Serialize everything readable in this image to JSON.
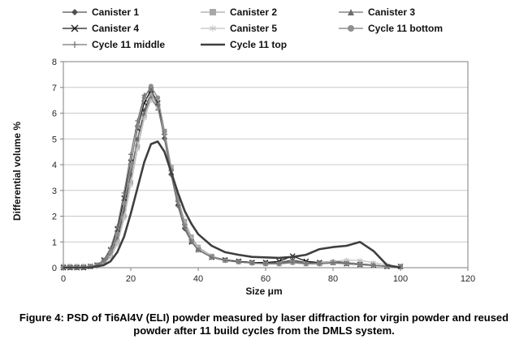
{
  "caption": "Figure 4: PSD of Ti6Al4V (ELI) powder measured by laser diffraction for virgin powder and reused powder after 11 build cycles from the DMLS system.",
  "chart_data": {
    "type": "line",
    "title": "",
    "xlabel": "Size μm",
    "ylabel": "Differential volume %",
    "xlim": [
      0,
      120
    ],
    "ylim": [
      0,
      8
    ],
    "x_ticks": [
      0,
      20,
      40,
      60,
      80,
      100,
      120
    ],
    "y_ticks": [
      0,
      1,
      2,
      3,
      4,
      5,
      6,
      7,
      8
    ],
    "grid": "horizontal",
    "legend_position": "top",
    "x": [
      0,
      2,
      4,
      6,
      8,
      10,
      12,
      14,
      16,
      18,
      20,
      22,
      24,
      26,
      28,
      30,
      32,
      34,
      36,
      38,
      40,
      44,
      48,
      52,
      56,
      60,
      64,
      68,
      72,
      76,
      80,
      84,
      88,
      92,
      96,
      100
    ],
    "series": [
      {
        "name": "Canister 1",
        "marker": "diamond",
        "color": "#4f4f4f",
        "width": 1.3,
        "values": [
          0,
          0,
          0,
          0,
          0.05,
          0.05,
          0.15,
          0.45,
          1.1,
          2.2,
          3.6,
          5.0,
          6.1,
          6.8,
          6.3,
          5.0,
          3.6,
          2.4,
          1.5,
          1.0,
          0.7,
          0.4,
          0.3,
          0.25,
          0.2,
          0.2,
          0.2,
          0.3,
          0.2,
          0.2,
          0.25,
          0.2,
          0.15,
          0.1,
          0.05,
          0.05
        ]
      },
      {
        "name": "Canister 2",
        "marker": "square",
        "color": "#a8a8a8",
        "width": 1.3,
        "values": [
          0.05,
          0.05,
          0.05,
          0.05,
          0.05,
          0.1,
          0.2,
          0.5,
          1.0,
          2.0,
          3.3,
          4.7,
          5.9,
          6.7,
          6.4,
          5.3,
          3.9,
          2.7,
          1.8,
          1.2,
          0.8,
          0.45,
          0.3,
          0.25,
          0.2,
          0.15,
          0.15,
          0.2,
          0.15,
          0.15,
          0.2,
          0.2,
          0.15,
          0.1,
          0.05,
          0.05
        ]
      },
      {
        "name": "Canister 3",
        "marker": "triangle",
        "color": "#6e6e6e",
        "width": 1.3,
        "values": [
          0,
          0,
          0,
          0,
          0.05,
          0.1,
          0.2,
          0.55,
          1.2,
          2.3,
          3.7,
          5.0,
          6.0,
          6.6,
          6.2,
          5.1,
          3.7,
          2.5,
          1.6,
          1.05,
          0.72,
          0.42,
          0.3,
          0.24,
          0.2,
          0.18,
          0.18,
          0.25,
          0.18,
          0.18,
          0.22,
          0.18,
          0.14,
          0.1,
          0.05,
          0.04
        ]
      },
      {
        "name": "Canister 4",
        "marker": "x",
        "color": "#1a1a1a",
        "width": 1.3,
        "values": [
          0,
          0,
          0,
          0,
          0.05,
          0.1,
          0.3,
          0.7,
          1.5,
          2.7,
          4.1,
          5.4,
          6.4,
          6.9,
          6.4,
          5.1,
          3.7,
          2.5,
          1.6,
          1.0,
          0.7,
          0.4,
          0.3,
          0.25,
          0.2,
          0.2,
          0.25,
          0.45,
          0.25,
          0.2,
          0.2,
          0.15,
          0.12,
          0.1,
          0.05,
          0.05
        ]
      },
      {
        "name": "Canister 5",
        "marker": "asterisk",
        "color": "#c4c4c4",
        "width": 1.3,
        "values": [
          0,
          0,
          0,
          0,
          0.05,
          0.05,
          0.15,
          0.4,
          0.9,
          1.9,
          3.2,
          4.6,
          5.8,
          6.5,
          6.2,
          5.2,
          3.8,
          2.6,
          1.7,
          1.1,
          0.75,
          0.42,
          0.28,
          0.22,
          0.18,
          0.15,
          0.15,
          0.18,
          0.15,
          0.18,
          0.25,
          0.3,
          0.28,
          0.2,
          0.1,
          0.05
        ]
      },
      {
        "name": "Cycle 11 bottom",
        "marker": "circle",
        "color": "#8f8f8f",
        "width": 1.5,
        "values": [
          0,
          0,
          0,
          0,
          0.05,
          0.1,
          0.25,
          0.6,
          1.3,
          2.5,
          4.0,
          5.5,
          6.6,
          7.05,
          6.6,
          5.3,
          3.8,
          2.6,
          1.65,
          1.05,
          0.7,
          0.4,
          0.28,
          0.22,
          0.18,
          0.15,
          0.15,
          0.2,
          0.15,
          0.15,
          0.18,
          0.15,
          0.12,
          0.08,
          0.05,
          0.04
        ]
      },
      {
        "name": "Cycle 11 middle",
        "marker": "plus",
        "color": "#757575",
        "width": 1.3,
        "values": [
          0,
          0,
          0,
          0,
          0.05,
          0.1,
          0.3,
          0.75,
          1.6,
          2.9,
          4.4,
          5.7,
          6.7,
          6.9,
          6.3,
          5.0,
          3.6,
          2.4,
          1.55,
          1.0,
          0.68,
          0.4,
          0.28,
          0.22,
          0.18,
          0.16,
          0.16,
          0.22,
          0.16,
          0.16,
          0.2,
          0.16,
          0.12,
          0.1,
          0.05,
          0.04
        ]
      },
      {
        "name": "Cycle 11 top",
        "marker": "none",
        "color": "#3f3f3f",
        "width": 2.6,
        "values": [
          0,
          0,
          0,
          0,
          0,
          0.05,
          0.1,
          0.25,
          0.6,
          1.2,
          2.1,
          3.1,
          4.1,
          4.8,
          4.9,
          4.5,
          3.7,
          2.9,
          2.2,
          1.7,
          1.3,
          0.85,
          0.6,
          0.5,
          0.42,
          0.4,
          0.38,
          0.42,
          0.5,
          0.72,
          0.8,
          0.85,
          1.0,
          0.65,
          0.1,
          0
        ]
      }
    ]
  }
}
